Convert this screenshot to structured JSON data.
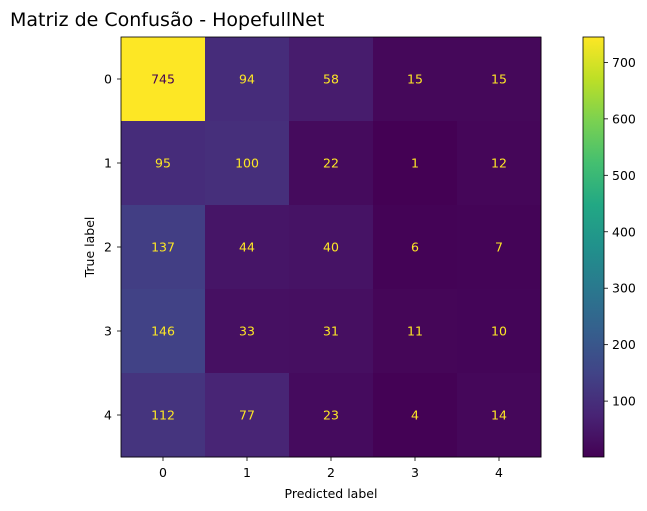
{
  "chart_data": {
    "type": "heatmap",
    "title": "Matriz de Confusão - HopefullNet",
    "xlabel": "Predicted label",
    "ylabel": "True label",
    "x_categories": [
      "0",
      "1",
      "2",
      "3",
      "4"
    ],
    "y_categories": [
      "0",
      "1",
      "2",
      "3",
      "4"
    ],
    "values": [
      [
        745,
        94,
        58,
        15,
        15
      ],
      [
        95,
        100,
        22,
        1,
        12
      ],
      [
        137,
        44,
        40,
        6,
        7
      ],
      [
        146,
        33,
        31,
        11,
        10
      ],
      [
        112,
        77,
        23,
        4,
        14
      ]
    ],
    "colormap": "viridis",
    "colorbar": {
      "range": [
        1,
        745
      ],
      "ticks": [
        "100",
        "200",
        "300",
        "400",
        "500",
        "600",
        "700"
      ]
    },
    "text_colors": {
      "low": "#fde725",
      "high": "#440154"
    }
  }
}
